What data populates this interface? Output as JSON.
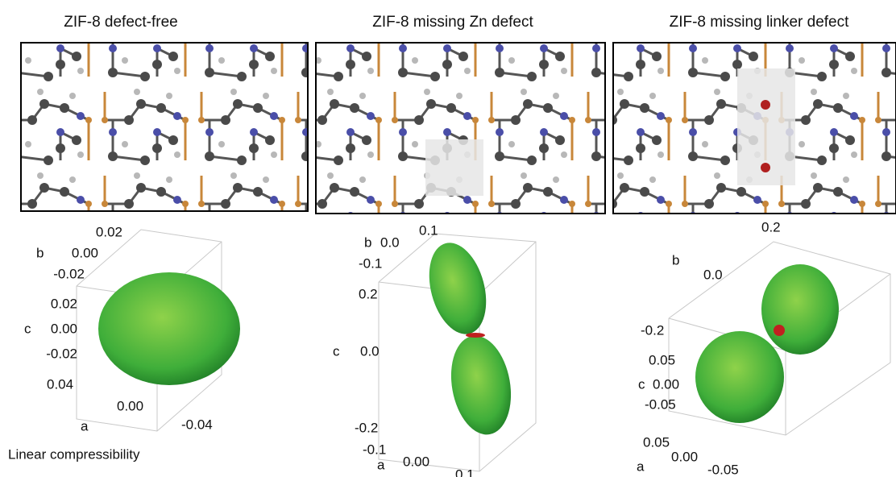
{
  "panels": [
    {
      "title": "ZIF-8 defect-free",
      "axes": {
        "b": {
          "label": "b",
          "ticks": [
            "0.02",
            "0.00",
            "-0.02"
          ]
        },
        "c": {
          "label": "c",
          "ticks": [
            "0.02",
            "0.00",
            "-0.02"
          ]
        },
        "a": {
          "label": "a",
          "ticks": [
            "0.04",
            "0.00",
            "-0.04"
          ]
        }
      }
    },
    {
      "title": "ZIF-8 missing Zn defect",
      "axes": {
        "b": {
          "label": "b",
          "ticks": [
            "0.1",
            "0.0",
            "-0.1"
          ]
        },
        "c": {
          "label": "c",
          "ticks": [
            "0.2",
            "0.0",
            "-0.2"
          ]
        },
        "a": {
          "label": "a",
          "ticks": [
            "-0.1",
            "0.00",
            "0.1"
          ]
        }
      }
    },
    {
      "title": "ZIF-8 missing linker defect",
      "axes": {
        "b": {
          "label": "b",
          "ticks": [
            "0.2",
            "0.0",
            "-0.2"
          ]
        },
        "c": {
          "label": "c",
          "ticks": [
            "0.05",
            "0.00",
            "-0.05"
          ]
        },
        "a": {
          "label": "a",
          "ticks": [
            "0.05",
            "0.00",
            "-0.05"
          ]
        }
      }
    }
  ],
  "caption": "Linear compressibility"
}
